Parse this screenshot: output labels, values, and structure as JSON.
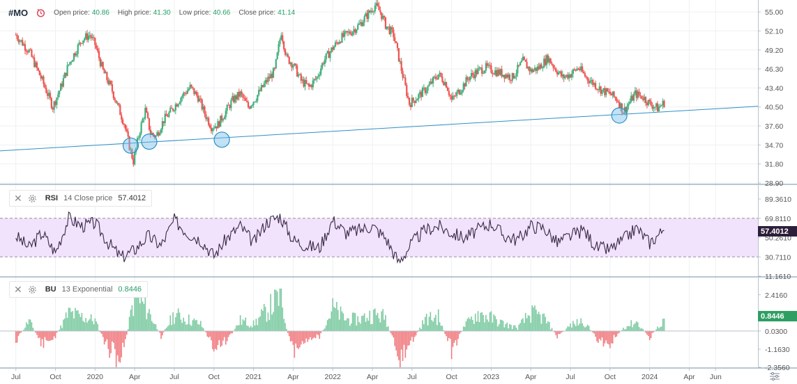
{
  "header": {
    "symbol": "#MO",
    "clock_icon": "clock-icon",
    "open_label": "Open price:",
    "open_value": "40.86",
    "high_label": "High price:",
    "high_value": "41.30",
    "low_label": "Low price:",
    "low_value": "40.66",
    "close_label": "Close price:",
    "close_value": "41.14"
  },
  "rsi_panel": {
    "name": "RSI",
    "params": "14 Close price",
    "value": "57.4012",
    "close_icon": "close-icon",
    "settings_icon": "gear-icon"
  },
  "bu_panel": {
    "name": "BU",
    "params": "13 Exponential",
    "value": "0.8446",
    "close_icon": "close-icon",
    "settings_icon": "gear-icon"
  },
  "colors": {
    "bull": "#26a69a",
    "bull_candle": "#3fae7c",
    "bear": "#ef5350",
    "trendline": "#2f8fc4",
    "rsi_line": "#3a2748",
    "rsi_band": "#f1e3fb",
    "rsi_tag": "#2d1f3b",
    "bu_tag": "#2f9e63"
  },
  "chart_data": [
    {
      "type": "candlestick",
      "symbol": "#MO",
      "y_ticks": [
        "55.00",
        "52.10",
        "49.20",
        "46.30",
        "43.40",
        "40.50",
        "37.60",
        "34.70",
        "31.80",
        "28.90"
      ],
      "ylim": [
        28.9,
        56.5
      ],
      "x_ticks": [
        "Jul",
        "Oct",
        "2020",
        "Apr",
        "Jul",
        "Oct",
        "2021",
        "Apr",
        "2022",
        "Apr",
        "Jul",
        "Oct",
        "2023",
        "Apr",
        "Jul",
        "Oct",
        "2024",
        "Apr",
        "Jun"
      ],
      "x_tick_index": [
        0.0,
        3.0,
        6.0,
        9.0,
        12.0,
        15.0,
        18.0,
        21.0,
        24.0,
        27.0,
        30.0,
        33.0,
        36.0,
        39.0,
        42.0,
        45.0,
        48.0,
        51.0,
        53.0
      ],
      "x_range_months": [
        -1.2,
        56.2
      ],
      "series_close_path": [
        [
          0,
          51.5
        ],
        [
          1,
          49.0
        ],
        [
          2,
          44.5
        ],
        [
          2.8,
          40.5
        ],
        [
          3.4,
          43.5
        ],
        [
          4,
          47.0
        ],
        [
          5,
          50.8
        ],
        [
          5.6,
          51.5
        ],
        [
          6,
          50.0
        ],
        [
          6.6,
          46.0
        ],
        [
          7.2,
          43.5
        ],
        [
          8.2,
          38.0
        ],
        [
          8.6,
          34.5
        ],
        [
          8.9,
          32.2
        ],
        [
          9.4,
          37.0
        ],
        [
          9.8,
          40.0
        ],
        [
          10.2,
          36.5
        ],
        [
          10.6,
          36.0
        ],
        [
          11.2,
          38.5
        ],
        [
          11.8,
          40.0
        ],
        [
          12.5,
          42.0
        ],
        [
          13.2,
          43.5
        ],
        [
          13.8,
          42.0
        ],
        [
          14.3,
          39.5
        ],
        [
          14.8,
          37.5
        ],
        [
          15.3,
          37.8
        ],
        [
          15.8,
          39.5
        ],
        [
          16.4,
          41.5
        ],
        [
          17,
          42.5
        ],
        [
          17.6,
          40.5
        ],
        [
          18.2,
          42.0
        ],
        [
          19,
          44.5
        ],
        [
          19.6,
          46.0
        ],
        [
          20.1,
          52.0
        ],
        [
          20.5,
          48.0
        ],
        [
          21,
          47.0
        ],
        [
          21.6,
          44.5
        ],
        [
          22.2,
          43.5
        ],
        [
          22.8,
          45.0
        ],
        [
          23.3,
          47.5
        ],
        [
          24,
          49.5
        ],
        [
          24.6,
          51.0
        ],
        [
          25.4,
          52.0
        ],
        [
          26,
          53.0
        ],
        [
          26.6,
          54.5
        ],
        [
          27.2,
          56.0
        ],
        [
          27.6,
          55.0
        ],
        [
          28.0,
          53.0
        ],
        [
          28.6,
          51.5
        ],
        [
          29,
          48.0
        ],
        [
          29.5,
          43.5
        ],
        [
          29.8,
          41.0
        ],
        [
          30.4,
          42.0
        ],
        [
          31.2,
          43.5
        ],
        [
          32,
          45.5
        ],
        [
          32.6,
          44.0
        ],
        [
          33,
          41.5
        ],
        [
          33.6,
          43.0
        ],
        [
          34.3,
          45.0
        ],
        [
          35,
          46.0
        ],
        [
          35.6,
          46.5
        ],
        [
          36.2,
          46.0
        ],
        [
          37,
          45.5
        ],
        [
          37.6,
          45.0
        ],
        [
          38.4,
          47.5
        ],
        [
          39,
          46.0
        ],
        [
          39.6,
          46.5
        ],
        [
          40.3,
          48.0
        ],
        [
          40.8,
          46.5
        ],
        [
          41.4,
          45.0
        ],
        [
          42,
          45.5
        ],
        [
          42.6,
          46.5
        ],
        [
          43.2,
          45.0
        ],
        [
          43.8,
          44.0
        ],
        [
          44.4,
          43.0
        ],
        [
          45,
          42.5
        ],
        [
          45.6,
          41.5
        ],
        [
          46,
          39.8
        ],
        [
          46.4,
          41.0
        ],
        [
          46.9,
          42.5
        ],
        [
          47.5,
          42.0
        ],
        [
          48,
          41.0
        ],
        [
          48.6,
          40.3
        ],
        [
          49.1,
          41.14
        ]
      ],
      "annotations": {
        "trendline": [
          [
            -1.2,
            33.8
          ],
          [
            56.2,
            40.6
          ]
        ],
        "circles": [
          [
            8.7,
            34.6
          ],
          [
            10.1,
            35.2
          ],
          [
            15.6,
            35.5
          ],
          [
            45.7,
            39.2
          ]
        ]
      }
    },
    {
      "type": "line",
      "name": "RSI",
      "params": "14 Close price",
      "last_value": 57.4012,
      "y_ticks": [
        "89.3610",
        "69.8110",
        "50.2610",
        "30.7110",
        "11.1610"
      ],
      "ylim": [
        11.161,
        89.361
      ],
      "band": [
        30.711,
        69.811
      ],
      "x": [
        0,
        1,
        2,
        3,
        4,
        5,
        6,
        7,
        8,
        9,
        10,
        11,
        12,
        13,
        14,
        15,
        16,
        17,
        18,
        19,
        20,
        21,
        22,
        23,
        24,
        25,
        26,
        27,
        28,
        29,
        30,
        31,
        32,
        33,
        34,
        35,
        36,
        37,
        38,
        39,
        40,
        41,
        42,
        43,
        44,
        45,
        46,
        47,
        48,
        49
      ],
      "values": [
        52,
        40,
        55,
        35,
        70,
        62,
        65,
        45,
        30,
        38,
        52,
        42,
        68,
        55,
        48,
        32,
        50,
        62,
        45,
        66,
        72,
        48,
        42,
        40,
        68,
        55,
        58,
        62,
        50,
        25,
        45,
        58,
        62,
        55,
        50,
        58,
        65,
        52,
        48,
        62,
        60,
        45,
        52,
        58,
        40,
        38,
        48,
        60,
        45,
        57.4012
      ]
    },
    {
      "type": "histogram",
      "name": "BU",
      "params": "13 Exponential",
      "last_value": 0.8446,
      "y_ticks": [
        "2.4160",
        "1.2230",
        "0.0300",
        "-1.1630",
        "-2.3560"
      ],
      "ylim": [
        -2.356,
        3.0
      ],
      "x": [
        0,
        1,
        2,
        3,
        4,
        5,
        6,
        7,
        8,
        9,
        10,
        11,
        12,
        13,
        14,
        15,
        16,
        17,
        18,
        19,
        20,
        21,
        22,
        23,
        24,
        25,
        26,
        27,
        28,
        29,
        30,
        31,
        32,
        33,
        34,
        35,
        36,
        37,
        38,
        39,
        40,
        41,
        42,
        43,
        44,
        45,
        46,
        47,
        48,
        49
      ],
      "values": [
        -0.8,
        0.9,
        -1.1,
        -0.4,
        1.5,
        1.2,
        0.9,
        -1.5,
        -2.2,
        2.9,
        1.8,
        -0.4,
        1.4,
        1.0,
        0.6,
        -1.2,
        -0.8,
        0.9,
        0.6,
        1.7,
        2.8,
        -2.0,
        -0.6,
        -0.4,
        1.9,
        1.0,
        1.0,
        1.4,
        1.2,
        -2.6,
        -0.8,
        1.0,
        1.2,
        -1.6,
        0.5,
        1.5,
        1.1,
        0.6,
        0.3,
        1.5,
        1.1,
        -0.4,
        0.5,
        0.9,
        -0.6,
        -1.0,
        0.3,
        0.8,
        -0.5,
        0.8446
      ]
    }
  ]
}
